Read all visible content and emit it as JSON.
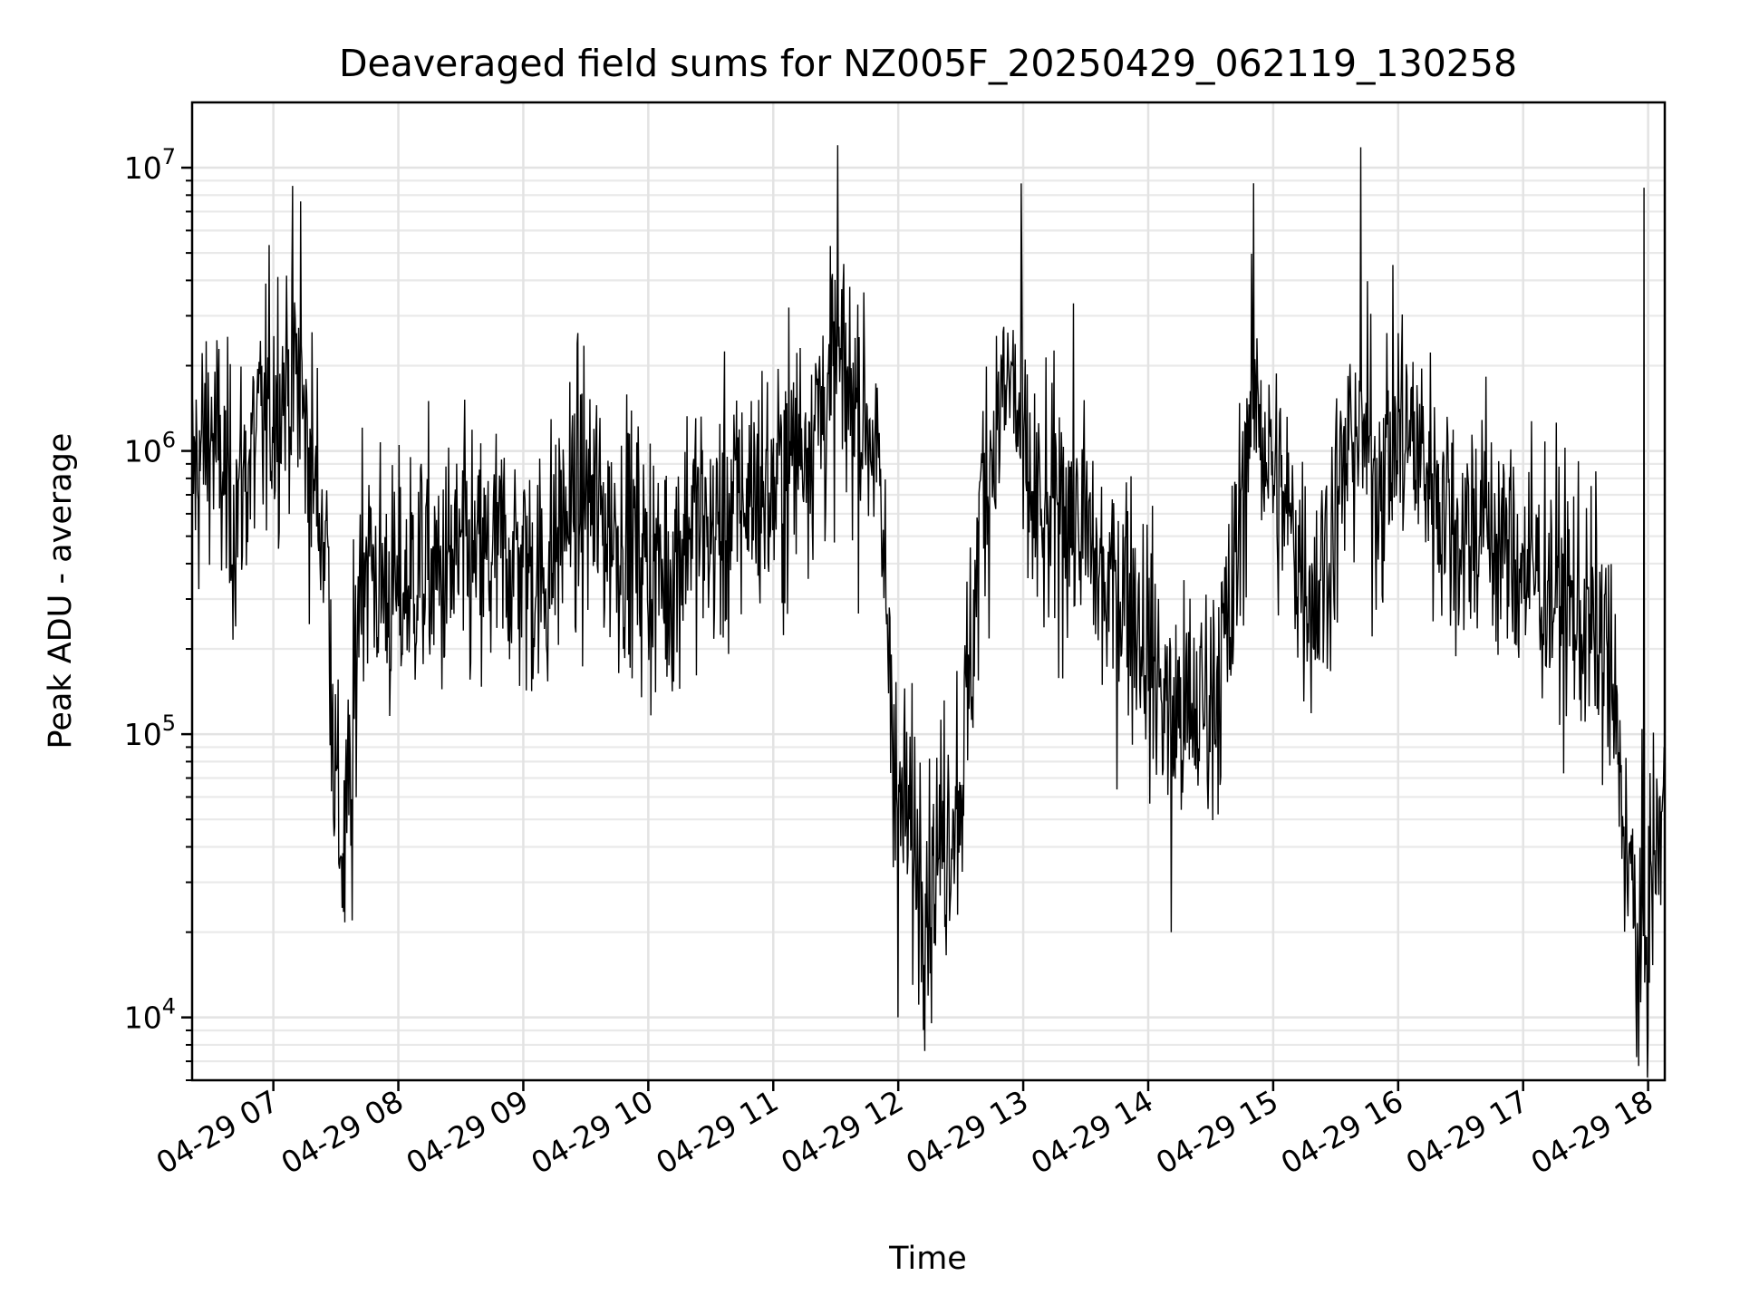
{
  "chart_data": {
    "type": "line",
    "title": "Deaveraged field sums for NZ005F_20250429_062119_130258",
    "xlabel": "Time",
    "ylabel": "Peak ADU - average",
    "yscale": "log",
    "grid": true,
    "grid_minor": true,
    "xlim": [
      "2025-04-29 06:21",
      "2025-04-29 18:08"
    ],
    "ylim": [
      6000,
      17000000
    ],
    "x_tick_labels": [
      "04-29 07",
      "04-29 08",
      "04-29 09",
      "04-29 10",
      "04-29 11",
      "04-29 12",
      "04-29 13",
      "04-29 14",
      "04-29 15",
      "04-29 16",
      "04-29 17",
      "04-29 18"
    ],
    "y_ticks": [
      {
        "value": 10000,
        "base": "10",
        "exp": "4"
      },
      {
        "value": 100000,
        "base": "10",
        "exp": "5"
      },
      {
        "value": 1000000,
        "base": "10",
        "exp": "6"
      },
      {
        "value": 10000000,
        "base": "10",
        "exp": "7"
      }
    ],
    "series": [
      {
        "color": "#000000",
        "points": [
          [
            "2025-04-29 06:21",
            800000
          ],
          [
            "2025-04-29 06:30",
            1200000
          ],
          [
            "2025-04-29 06:40",
            600000
          ],
          [
            "2025-04-29 06:50",
            1000000
          ],
          [
            "2025-04-29 07:00",
            1500000
          ],
          [
            "2025-04-29 07:10",
            2000000
          ],
          [
            "2025-04-29 07:18",
            900000
          ],
          [
            "2025-04-29 07:26",
            450000
          ],
          [
            "2025-04-29 07:30",
            60000
          ],
          [
            "2025-04-29 07:34",
            35000
          ],
          [
            "2025-04-29 07:38",
            90000
          ],
          [
            "2025-04-29 07:42",
            500000
          ],
          [
            "2025-04-29 07:50",
            350000
          ],
          [
            "2025-04-29 08:00",
            300000
          ],
          [
            "2025-04-29 08:10",
            400000
          ],
          [
            "2025-04-29 08:20",
            350000
          ],
          [
            "2025-04-29 08:30",
            420000
          ],
          [
            "2025-04-29 08:40",
            380000
          ],
          [
            "2025-04-29 08:50",
            450000
          ],
          [
            "2025-04-29 09:00",
            400000
          ],
          [
            "2025-04-29 09:10",
            350000
          ],
          [
            "2025-04-29 09:20",
            600000
          ],
          [
            "2025-04-29 09:30",
            700000
          ],
          [
            "2025-04-29 09:40",
            550000
          ],
          [
            "2025-04-29 09:50",
            500000
          ],
          [
            "2025-04-29 10:00",
            400000
          ],
          [
            "2025-04-29 10:10",
            350000
          ],
          [
            "2025-04-29 10:20",
            600000
          ],
          [
            "2025-04-29 10:30",
            500000
          ],
          [
            "2025-04-29 10:40",
            600000
          ],
          [
            "2025-04-29 10:50",
            750000
          ],
          [
            "2025-04-29 11:00",
            700000
          ],
          [
            "2025-04-29 11:10",
            1000000
          ],
          [
            "2025-04-29 11:20",
            1300000
          ],
          [
            "2025-04-29 11:30",
            1800000
          ],
          [
            "2025-04-29 11:40",
            1500000
          ],
          [
            "2025-04-29 11:48",
            1200000
          ],
          [
            "2025-04-29 11:55",
            250000
          ],
          [
            "2025-04-29 12:00",
            60000
          ],
          [
            "2025-04-29 12:08",
            40000
          ],
          [
            "2025-04-29 12:15",
            30000
          ],
          [
            "2025-04-29 12:22",
            45000
          ],
          [
            "2025-04-29 12:30",
            70000
          ],
          [
            "2025-04-29 12:35",
            180000
          ],
          [
            "2025-04-29 12:40",
            700000
          ],
          [
            "2025-04-29 12:50",
            1500000
          ],
          [
            "2025-04-29 12:55",
            1800000
          ],
          [
            "2025-04-29 13:00",
            800000
          ],
          [
            "2025-04-29 13:10",
            500000
          ],
          [
            "2025-04-29 13:20",
            700000
          ],
          [
            "2025-04-29 13:30",
            500000
          ],
          [
            "2025-04-29 13:40",
            300000
          ],
          [
            "2025-04-29 13:50",
            350000
          ],
          [
            "2025-04-29 14:00",
            200000
          ],
          [
            "2025-04-29 14:10",
            120000
          ],
          [
            "2025-04-29 14:20",
            110000
          ],
          [
            "2025-04-29 14:30",
            140000
          ],
          [
            "2025-04-29 14:40",
            250000
          ],
          [
            "2025-04-29 14:45",
            700000
          ],
          [
            "2025-04-29 14:50",
            1800000
          ],
          [
            "2025-04-29 15:00",
            800000
          ],
          [
            "2025-04-29 15:10",
            500000
          ],
          [
            "2025-04-29 15:20",
            300000
          ],
          [
            "2025-04-29 15:30",
            600000
          ],
          [
            "2025-04-29 15:40",
            1300000
          ],
          [
            "2025-04-29 15:50",
            800000
          ],
          [
            "2025-04-29 16:00",
            1200000
          ],
          [
            "2025-04-29 16:10",
            1000000
          ],
          [
            "2025-04-29 16:20",
            700000
          ],
          [
            "2025-04-29 16:30",
            500000
          ],
          [
            "2025-04-29 16:40",
            600000
          ],
          [
            "2025-04-29 16:50",
            450000
          ],
          [
            "2025-04-29 17:00",
            400000
          ],
          [
            "2025-04-29 17:10",
            350000
          ],
          [
            "2025-04-29 17:20",
            300000
          ],
          [
            "2025-04-29 17:30",
            250000
          ],
          [
            "2025-04-29 17:40",
            200000
          ],
          [
            "2025-04-29 17:50",
            40000
          ],
          [
            "2025-04-29 17:55",
            15000
          ],
          [
            "2025-04-29 18:00",
            25000
          ],
          [
            "2025-04-29 18:08",
            60000
          ]
        ],
        "extremes": [
          [
            "2025-04-29 07:13",
            7600000
          ],
          [
            "2025-04-29 11:31",
            12000000
          ],
          [
            "2025-04-29 12:59",
            8800000
          ],
          [
            "2025-04-29 15:42",
            11800000
          ],
          [
            "2025-04-29 12:00",
            10000
          ],
          [
            "2025-04-29 17:58",
            8500000
          ],
          [
            "2025-04-29 18:00",
            8500
          ],
          [
            "2025-04-29 07:38",
            22000
          ],
          [
            "2025-04-29 14:11",
            20000
          ]
        ]
      }
    ]
  }
}
